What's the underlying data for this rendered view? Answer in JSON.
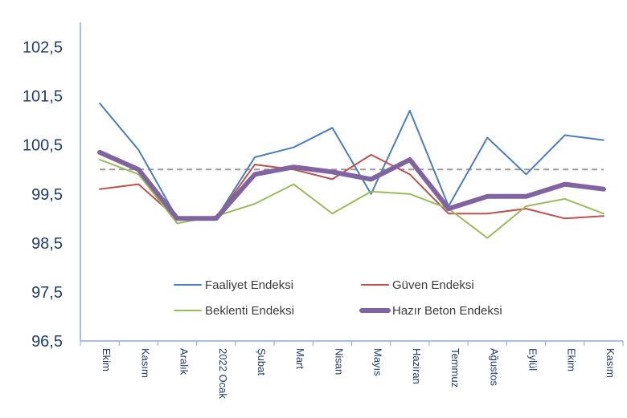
{
  "chart_data": {
    "type": "line",
    "categories": [
      "Ekim",
      "Kasım",
      "Aralık",
      "2022 Ocak",
      "Şubat",
      "Mart",
      "Nisan",
      "Mayıs",
      "Haziran",
      "Temmuz",
      "Ağustos",
      "Eylül",
      "Ekim",
      "Kasım"
    ],
    "yticks": [
      "102,5",
      "101,5",
      "100,5",
      "99,5",
      "98,5",
      "97,5",
      "96,5"
    ],
    "ylim": [
      96.5,
      103.0
    ],
    "reference_line": 100.0,
    "series": [
      {
        "name": "Faaliyet Endeksi",
        "color": "#4a7ebb",
        "width": 2,
        "values": [
          101.35,
          100.4,
          99.0,
          99.0,
          100.25,
          100.45,
          100.85,
          99.5,
          101.2,
          99.25,
          100.65,
          99.9,
          100.7,
          100.6
        ]
      },
      {
        "name": "Güven Endeksi",
        "color": "#c0504d",
        "width": 2,
        "values": [
          99.6,
          99.7,
          99.0,
          99.0,
          100.1,
          100.0,
          99.8,
          100.3,
          99.9,
          99.1,
          99.1,
          99.2,
          99.0,
          99.05
        ]
      },
      {
        "name": "Beklenti Endeksi",
        "color": "#9bbb59",
        "width": 2,
        "values": [
          100.2,
          99.9,
          98.9,
          99.05,
          99.3,
          99.7,
          99.1,
          99.55,
          99.5,
          99.2,
          98.6,
          99.25,
          99.4,
          99.1
        ]
      },
      {
        "name": "Hazır Beton Endeksi",
        "color": "#8064a2",
        "width": 6,
        "values": [
          100.35,
          100.0,
          99.0,
          99.0,
          99.9,
          100.05,
          99.95,
          99.8,
          100.2,
          99.2,
          99.45,
          99.45,
          99.7,
          99.6
        ]
      }
    ]
  }
}
